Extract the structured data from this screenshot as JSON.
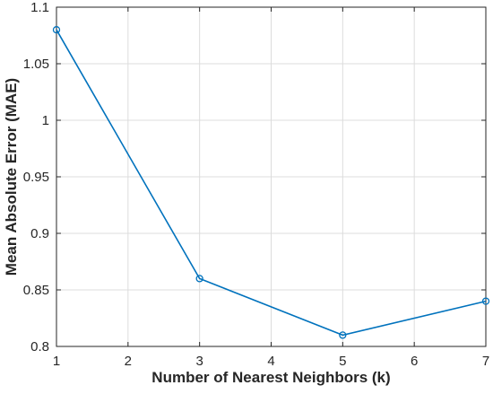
{
  "chart_data": {
    "type": "line",
    "xlabel": "Number of Nearest Neighbors (k)",
    "ylabel": "Mean Absolute Error (MAE)",
    "xlim": [
      1,
      7
    ],
    "ylim": [
      0.8,
      1.1
    ],
    "xticks": [
      1,
      2,
      3,
      4,
      5,
      6,
      7
    ],
    "yticks": [
      0.8,
      0.85,
      0.9,
      0.95,
      1,
      1.05,
      1.1
    ],
    "xtick_labels": [
      "1",
      "2",
      "3",
      "4",
      "5",
      "6",
      "7"
    ],
    "ytick_labels": [
      "0.8",
      "0.85",
      "0.9",
      "0.95",
      "1",
      "1.05",
      "1.1"
    ],
    "grid": true,
    "series": [
      {
        "x": [
          1,
          3,
          5,
          7
        ],
        "y": [
          1.08,
          0.86,
          0.81,
          0.84
        ],
        "color": "#0072BD",
        "marker": "circle"
      }
    ]
  }
}
